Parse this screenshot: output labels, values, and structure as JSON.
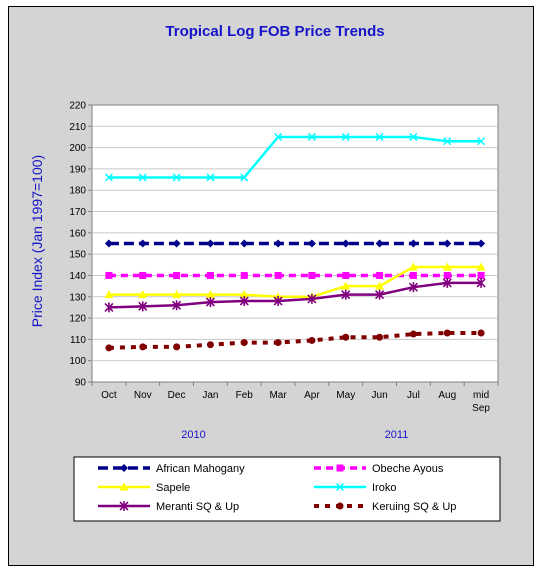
{
  "chart_data": {
    "type": "line",
    "title": "Tropical Log FOB Price Trends",
    "ylabel": "Price Index (Jan 1997=100)",
    "xlabel": "",
    "ylim": [
      90,
      220
    ],
    "yticks": [
      90,
      100,
      110,
      120,
      130,
      140,
      150,
      160,
      170,
      180,
      190,
      200,
      210,
      220
    ],
    "categories": [
      "Oct",
      "Nov",
      "Dec",
      "Jan",
      "Feb",
      "Mar",
      "Apr",
      "May",
      "Jun",
      "Jul",
      "Aug",
      "mid Sep"
    ],
    "year_labels": [
      {
        "label": "2010",
        "category_index": 2.5
      },
      {
        "label": "2011",
        "category_index": 8.5
      }
    ],
    "grid": true,
    "legend_position": "bottom",
    "series": [
      {
        "name": "African Mahogany",
        "color": "#00008b",
        "marker": "diamond",
        "dash": "long-dash",
        "values": [
          155,
          155,
          155,
          155,
          155,
          155,
          155,
          155,
          155,
          155,
          155,
          155
        ]
      },
      {
        "name": "Obeche Ayous",
        "color": "#ff00ff",
        "marker": "square",
        "dash": "dash",
        "values": [
          140,
          140,
          140,
          140,
          140,
          140,
          140,
          140,
          140,
          140,
          140,
          140
        ]
      },
      {
        "name": "Sapele",
        "color": "#ffff00",
        "marker": "triangle",
        "dash": "solid",
        "values": [
          131,
          131,
          131,
          131,
          131,
          130,
          130,
          135,
          135,
          144,
          144,
          144
        ]
      },
      {
        "name": "Iroko",
        "color": "#00ffff",
        "marker": "x",
        "dash": "solid",
        "values": [
          186,
          186,
          186,
          186,
          186,
          205,
          205,
          205,
          205,
          205,
          203,
          203
        ]
      },
      {
        "name": "Meranti SQ & Up",
        "color": "#800080",
        "marker": "star",
        "dash": "solid",
        "values": [
          125,
          125.5,
          126,
          127.5,
          128,
          128,
          129,
          131,
          131,
          134.5,
          136.5,
          136.5
        ]
      },
      {
        "name": "Keruing SQ & Up",
        "color": "#800000",
        "marker": "circle",
        "dash": "dot",
        "values": [
          106,
          106.5,
          106.5,
          107.5,
          108.5,
          108.5,
          109.5,
          111,
          111,
          112.5,
          113,
          113
        ]
      }
    ]
  }
}
